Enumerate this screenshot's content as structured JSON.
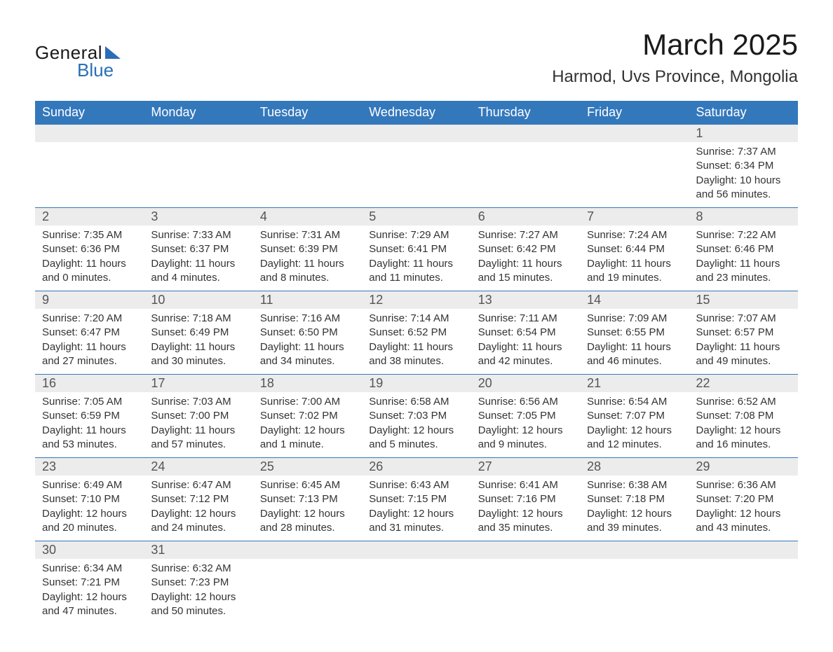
{
  "logo": {
    "text_general": "General",
    "text_blue": "Blue"
  },
  "title": "March 2025",
  "location": "Harmod, Uvs Province, Mongolia",
  "colors": {
    "header_bg": "#3478bc",
    "header_text": "#ffffff",
    "daynum_bg": "#ececec",
    "body_text": "#333333",
    "logo_blue": "#2a6fb5"
  },
  "weekdays": [
    "Sunday",
    "Monday",
    "Tuesday",
    "Wednesday",
    "Thursday",
    "Friday",
    "Saturday"
  ],
  "weeks": [
    {
      "nums": [
        "",
        "",
        "",
        "",
        "",
        "",
        "1"
      ],
      "details": [
        "",
        "",
        "",
        "",
        "",
        "",
        "Sunrise: 7:37 AM\nSunset: 6:34 PM\nDaylight: 10 hours and 56 minutes."
      ]
    },
    {
      "nums": [
        "2",
        "3",
        "4",
        "5",
        "6",
        "7",
        "8"
      ],
      "details": [
        "Sunrise: 7:35 AM\nSunset: 6:36 PM\nDaylight: 11 hours and 0 minutes.",
        "Sunrise: 7:33 AM\nSunset: 6:37 PM\nDaylight: 11 hours and 4 minutes.",
        "Sunrise: 7:31 AM\nSunset: 6:39 PM\nDaylight: 11 hours and 8 minutes.",
        "Sunrise: 7:29 AM\nSunset: 6:41 PM\nDaylight: 11 hours and 11 minutes.",
        "Sunrise: 7:27 AM\nSunset: 6:42 PM\nDaylight: 11 hours and 15 minutes.",
        "Sunrise: 7:24 AM\nSunset: 6:44 PM\nDaylight: 11 hours and 19 minutes.",
        "Sunrise: 7:22 AM\nSunset: 6:46 PM\nDaylight: 11 hours and 23 minutes."
      ]
    },
    {
      "nums": [
        "9",
        "10",
        "11",
        "12",
        "13",
        "14",
        "15"
      ],
      "details": [
        "Sunrise: 7:20 AM\nSunset: 6:47 PM\nDaylight: 11 hours and 27 minutes.",
        "Sunrise: 7:18 AM\nSunset: 6:49 PM\nDaylight: 11 hours and 30 minutes.",
        "Sunrise: 7:16 AM\nSunset: 6:50 PM\nDaylight: 11 hours and 34 minutes.",
        "Sunrise: 7:14 AM\nSunset: 6:52 PM\nDaylight: 11 hours and 38 minutes.",
        "Sunrise: 7:11 AM\nSunset: 6:54 PM\nDaylight: 11 hours and 42 minutes.",
        "Sunrise: 7:09 AM\nSunset: 6:55 PM\nDaylight: 11 hours and 46 minutes.",
        "Sunrise: 7:07 AM\nSunset: 6:57 PM\nDaylight: 11 hours and 49 minutes."
      ]
    },
    {
      "nums": [
        "16",
        "17",
        "18",
        "19",
        "20",
        "21",
        "22"
      ],
      "details": [
        "Sunrise: 7:05 AM\nSunset: 6:59 PM\nDaylight: 11 hours and 53 minutes.",
        "Sunrise: 7:03 AM\nSunset: 7:00 PM\nDaylight: 11 hours and 57 minutes.",
        "Sunrise: 7:00 AM\nSunset: 7:02 PM\nDaylight: 12 hours and 1 minute.",
        "Sunrise: 6:58 AM\nSunset: 7:03 PM\nDaylight: 12 hours and 5 minutes.",
        "Sunrise: 6:56 AM\nSunset: 7:05 PM\nDaylight: 12 hours and 9 minutes.",
        "Sunrise: 6:54 AM\nSunset: 7:07 PM\nDaylight: 12 hours and 12 minutes.",
        "Sunrise: 6:52 AM\nSunset: 7:08 PM\nDaylight: 12 hours and 16 minutes."
      ]
    },
    {
      "nums": [
        "23",
        "24",
        "25",
        "26",
        "27",
        "28",
        "29"
      ],
      "details": [
        "Sunrise: 6:49 AM\nSunset: 7:10 PM\nDaylight: 12 hours and 20 minutes.",
        "Sunrise: 6:47 AM\nSunset: 7:12 PM\nDaylight: 12 hours and 24 minutes.",
        "Sunrise: 6:45 AM\nSunset: 7:13 PM\nDaylight: 12 hours and 28 minutes.",
        "Sunrise: 6:43 AM\nSunset: 7:15 PM\nDaylight: 12 hours and 31 minutes.",
        "Sunrise: 6:41 AM\nSunset: 7:16 PM\nDaylight: 12 hours and 35 minutes.",
        "Sunrise: 6:38 AM\nSunset: 7:18 PM\nDaylight: 12 hours and 39 minutes.",
        "Sunrise: 6:36 AM\nSunset: 7:20 PM\nDaylight: 12 hours and 43 minutes."
      ]
    },
    {
      "nums": [
        "30",
        "31",
        "",
        "",
        "",
        "",
        ""
      ],
      "details": [
        "Sunrise: 6:34 AM\nSunset: 7:21 PM\nDaylight: 12 hours and 47 minutes.",
        "Sunrise: 6:32 AM\nSunset: 7:23 PM\nDaylight: 12 hours and 50 minutes.",
        "",
        "",
        "",
        "",
        ""
      ]
    }
  ]
}
